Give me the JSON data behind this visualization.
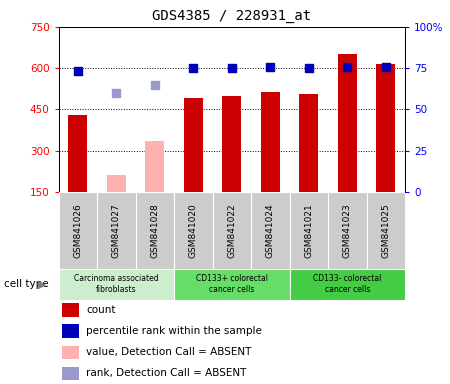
{
  "title": "GDS4385 / 228931_at",
  "samples": [
    "GSM841026",
    "GSM841027",
    "GSM841028",
    "GSM841020",
    "GSM841022",
    "GSM841024",
    "GSM841021",
    "GSM841023",
    "GSM841025"
  ],
  "count_values": [
    430,
    null,
    null,
    490,
    500,
    515,
    505,
    650,
    615
  ],
  "count_absent_values": [
    null,
    210,
    335,
    null,
    null,
    null,
    null,
    null,
    null
  ],
  "rank_values": [
    73,
    null,
    null,
    75,
    75,
    76,
    75,
    76,
    76
  ],
  "rank_absent_values": [
    null,
    60,
    65,
    null,
    null,
    null,
    null,
    null,
    null
  ],
  "ylim_left": [
    150,
    750
  ],
  "ylim_right": [
    0,
    100
  ],
  "yticks_left": [
    150,
    300,
    450,
    600,
    750
  ],
  "yticks_right": [
    0,
    25,
    50,
    75,
    100
  ],
  "ytick_labels_right": [
    "0",
    "25",
    "50",
    "75",
    "100%"
  ],
  "bar_color": "#cc0000",
  "bar_absent_color": "#ffb0b0",
  "dot_color": "#0000bb",
  "dot_absent_color": "#9999cc",
  "group_spans": [
    {
      "start": 0,
      "end": 2,
      "label": "Carcinoma associated\nfibroblasts",
      "color": "#cceecc"
    },
    {
      "start": 3,
      "end": 5,
      "label": "CD133+ colorectal\ncancer cells",
      "color": "#66dd66"
    },
    {
      "start": 6,
      "end": 8,
      "label": "CD133- colorectal\ncancer cells",
      "color": "#44cc44"
    }
  ],
  "sample_box_color": "#cccccc",
  "cell_type_label": "cell type",
  "legend_items": [
    {
      "color": "#cc0000",
      "label": "count"
    },
    {
      "color": "#0000bb",
      "label": "percentile rank within the sample"
    },
    {
      "color": "#ffb0b0",
      "label": "value, Detection Call = ABSENT"
    },
    {
      "color": "#9999cc",
      "label": "rank, Detection Call = ABSENT"
    }
  ],
  "bar_width": 0.5,
  "dot_size": 40
}
